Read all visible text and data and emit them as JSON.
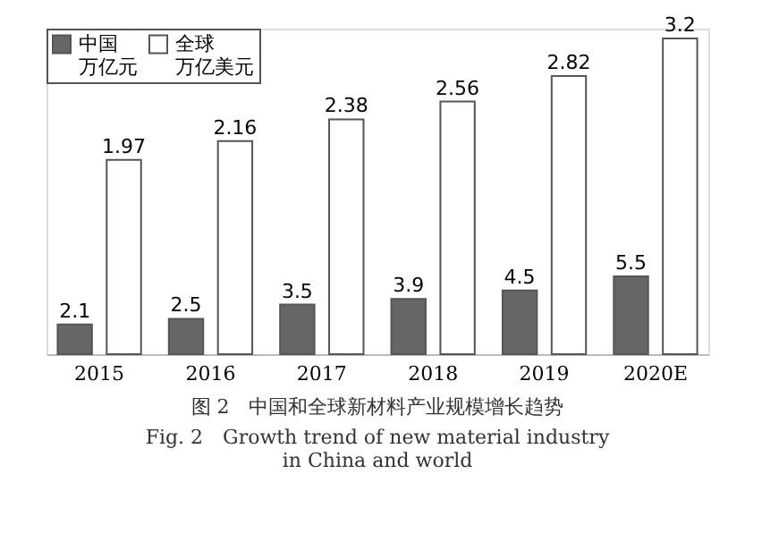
{
  "chart_data": {
    "type": "bar",
    "title": "图 2　中国和全球新材料产业规模增长趋势",
    "subtitle": "Fig. 2　Growth trend of new material industry in China and world",
    "categories": [
      "2015",
      "2016",
      "2017",
      "2018",
      "2019",
      "2020E"
    ],
    "series": [
      {
        "name": "中国万亿元",
        "color": "#666666",
        "values": [
          2.1,
          2.5,
          3.5,
          3.9,
          4.5,
          5.5
        ]
      },
      {
        "name": "全球万亿美元",
        "color": "#ffffff",
        "axis": "y2",
        "values": [
          1.97,
          2.16,
          2.38,
          2.56,
          2.82,
          3.2
        ]
      }
    ],
    "ylim": [
      0,
      23
    ],
    "y2lim": [
      0,
      3.3
    ],
    "tick_labels": "x",
    "data_labels": true,
    "legend": "top left"
  }
}
